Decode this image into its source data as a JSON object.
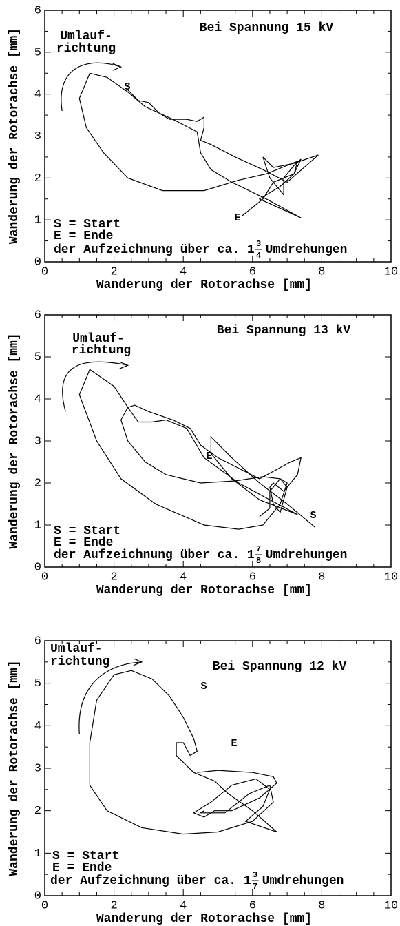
{
  "chart_data": [
    {
      "type": "line",
      "title": "Bei Spannung 15 kV",
      "xlabel": "Wanderung der Rotorachse [mm]",
      "ylabel": "Wanderung der Rotorachse [mm]",
      "xlim": [
        0,
        10
      ],
      "ylim": [
        0,
        6
      ],
      "xticks": [
        0,
        2,
        4,
        6,
        8,
        10
      ],
      "yticks": [
        0,
        1,
        2,
        3,
        4,
        5,
        6
      ],
      "direction_label": [
        "Umlauf-",
        "richtung"
      ],
      "start_marker": "S",
      "end_marker": "E",
      "legend_notes": [
        "S = Start",
        "E = Ende"
      ],
      "note": {
        "text": "der Aufzeichnung über ca. 1",
        "numerator": 3,
        "denominator": 4,
        "suffix": "Umdrehungen"
      },
      "series": [
        {
          "color": "#000000",
          "x": [
            2.4,
            2.7,
            3.0,
            3.3,
            3.6,
            4.1,
            4.4,
            4.6,
            4.6,
            4.5,
            4.8,
            5.5,
            6.3,
            7.0,
            7.9,
            7.2,
            6.6,
            6.3,
            6.5,
            6.9,
            6.9,
            7.2,
            7.4,
            7.2,
            6.8,
            6.2,
            7.4,
            6.4,
            5.4,
            4.8,
            4.5,
            4.4,
            3.7,
            2.9,
            2.4,
            1.8,
            1.3,
            1.0,
            1.2,
            1.7,
            2.4,
            3.4,
            4.6,
            5.6,
            6.4,
            7.0,
            7.3,
            7.2,
            6.6,
            6.3,
            5.7
          ],
          "values": [
            4.1,
            3.85,
            3.8,
            3.55,
            3.4,
            3.4,
            3.35,
            3.45,
            3.2,
            2.9,
            2.8,
            2.5,
            2.2,
            1.9,
            2.55,
            2.35,
            2.25,
            2.5,
            2.0,
            1.6,
            2.0,
            2.3,
            2.45,
            2.1,
            1.8,
            1.5,
            1.05,
            1.5,
            1.9,
            2.2,
            2.6,
            3.1,
            3.4,
            3.7,
            4.05,
            4.4,
            4.5,
            3.9,
            3.2,
            2.6,
            2.0,
            1.7,
            1.7,
            1.95,
            2.1,
            2.3,
            2.4,
            2.1,
            1.9,
            1.5,
            1.1
          ]
        }
      ]
    },
    {
      "type": "line",
      "title": "Bei Spannung 13 kV",
      "xlabel": "Wanderung der Rotorachse [mm]",
      "ylabel": "Wanderung der Rotorachse [mm]",
      "xlim": [
        0,
        10
      ],
      "ylim": [
        0,
        6
      ],
      "xticks": [
        0,
        2,
        4,
        6,
        8,
        10
      ],
      "yticks": [
        0,
        1,
        2,
        3,
        4,
        5,
        6
      ],
      "direction_label": [
        "Umlauf-",
        "richtung"
      ],
      "start_marker": "S",
      "end_marker": "E",
      "legend_notes": [
        "S = Start",
        "E = Ende"
      ],
      "note": {
        "text": "der Aufzeichnung über ca. 1",
        "numerator": 7,
        "denominator": 8,
        "suffix": "Umdrehungen"
      },
      "series": [
        {
          "color": "#000000",
          "x": [
            7.8,
            7.0,
            6.2,
            5.4,
            4.8,
            4.8,
            5.4,
            6.2,
            7.3,
            6.5,
            5.6,
            4.6,
            4.1,
            3.5,
            3.1,
            2.7,
            2.4,
            2.6,
            3.0,
            3.7,
            4.2,
            4.5,
            5.0,
            6.2,
            7.1,
            7.4,
            7.3,
            6.9,
            6.6,
            6.5,
            6.6,
            6.8,
            7.0,
            6.8,
            6.3,
            5.5,
            4.5,
            3.5,
            2.9,
            2.4,
            2.2,
            2.4,
            2.0,
            1.3,
            1.0,
            1.5,
            2.2,
            3.2,
            4.6,
            5.6,
            6.3,
            6.8,
            7.0,
            6.8,
            6.5,
            6.5,
            6.2
          ],
          "values": [
            0.95,
            1.5,
            2.0,
            2.6,
            3.1,
            2.7,
            2.1,
            1.6,
            1.25,
            1.6,
            2.0,
            2.6,
            3.3,
            3.5,
            3.45,
            3.45,
            3.8,
            3.85,
            3.7,
            3.5,
            3.3,
            2.9,
            2.6,
            2.1,
            2.5,
            2.6,
            2.2,
            1.8,
            2.0,
            1.9,
            1.5,
            1.3,
            1.9,
            2.1,
            2.15,
            2.05,
            2.0,
            2.2,
            2.5,
            3.0,
            3.5,
            3.8,
            4.3,
            4.7,
            4.1,
            3.0,
            2.1,
            1.5,
            1.0,
            0.9,
            1.0,
            1.5,
            2.0,
            2.1,
            1.8,
            1.4,
            1.2
          ]
        }
      ]
    },
    {
      "type": "line",
      "title": "Bei Spannung 12 kV",
      "xlabel": "Wanderung der Rotorachse [mm]",
      "ylabel": "Wanderung der Rotorachse [mm]",
      "xlim": [
        0,
        10
      ],
      "ylim": [
        0,
        6
      ],
      "xticks": [
        0,
        2,
        4,
        6,
        8,
        10
      ],
      "yticks": [
        0,
        1,
        2,
        3,
        4,
        5,
        6
      ],
      "direction_label": [
        "Umlauf-",
        "richtung"
      ],
      "start_marker": "S",
      "end_marker": "E",
      "legend_notes": [
        "S = Start",
        "E = Ende"
      ],
      "note": {
        "text": "der Aufzeichnung über ca. 1",
        "numerator": 3,
        "denominator": 7,
        "suffix": "Umdrehungen"
      },
      "series": [
        {
          "color": "#000000",
          "x": [
            4.4,
            5.0,
            6.0,
            6.6,
            6.7,
            6.2,
            5.4,
            4.9,
            4.6,
            4.3,
            4.8,
            5.4,
            6.1,
            6.5,
            6.3,
            5.8,
            6.7,
            6.0,
            5.3,
            4.9,
            4.3,
            3.8,
            3.8,
            4.0,
            4.2,
            4.4,
            4.3,
            4.0,
            3.6,
            3.1,
            2.5,
            2.0,
            1.5,
            1.3,
            1.3,
            1.8,
            2.8,
            4.0,
            5.0,
            6.0,
            6.6,
            6.5,
            5.9,
            5.2,
            4.5,
            4.6
          ],
          "values": [
            2.9,
            2.95,
            2.9,
            2.8,
            2.65,
            2.3,
            2.0,
            2.0,
            1.85,
            1.95,
            2.2,
            2.6,
            2.75,
            2.5,
            2.1,
            1.75,
            1.5,
            2.0,
            2.4,
            2.7,
            2.9,
            3.3,
            3.6,
            3.6,
            3.3,
            3.4,
            3.7,
            4.2,
            4.7,
            5.1,
            5.3,
            5.2,
            4.6,
            3.6,
            2.6,
            2.0,
            1.6,
            1.45,
            1.5,
            1.75,
            2.2,
            2.6,
            2.4,
            1.95,
            1.95,
            2.0
          ]
        }
      ]
    }
  ]
}
